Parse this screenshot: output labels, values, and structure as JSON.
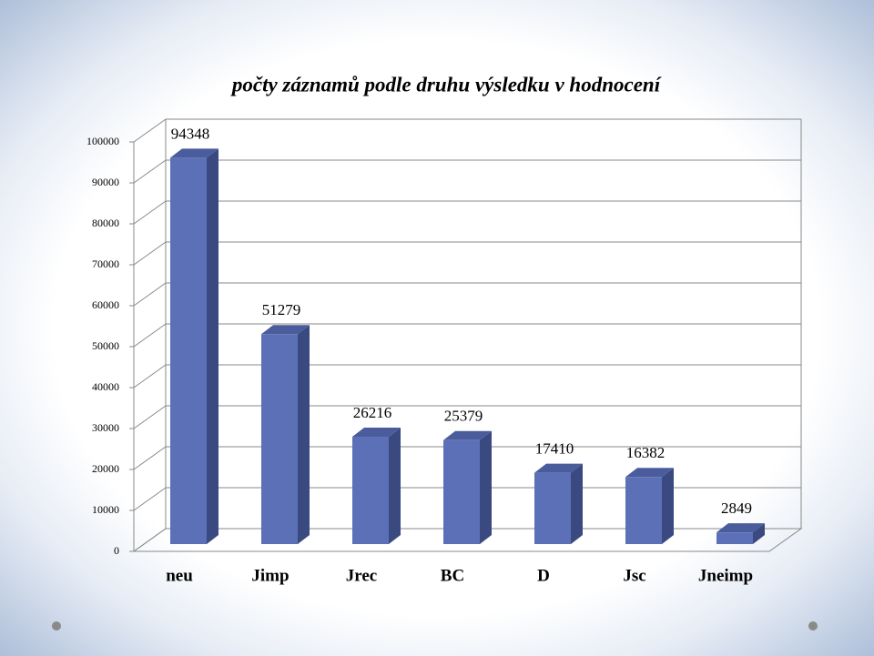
{
  "chart_data": {
    "type": "bar",
    "title": "počty záznamů podle druhu výsledku v hodnocení",
    "categories": [
      "neu",
      "Jimp",
      "Jrec",
      "BC",
      "D",
      "Jsc",
      "Jneimp"
    ],
    "values": [
      94348,
      51279,
      26216,
      25379,
      17410,
      16382,
      2849
    ],
    "color": "#5b70b6",
    "ylim": [
      0,
      100000
    ],
    "yticks": [
      0,
      10000,
      20000,
      30000,
      40000,
      50000,
      60000,
      70000,
      80000,
      90000,
      100000
    ],
    "grid": true
  }
}
